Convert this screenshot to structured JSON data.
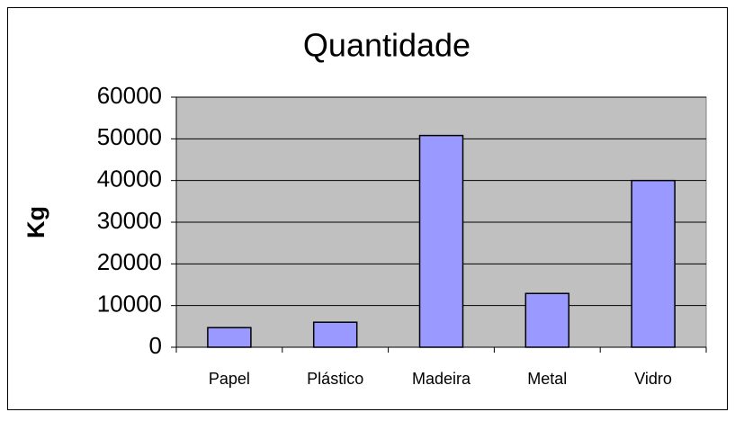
{
  "chart_data": {
    "type": "bar",
    "title": "Quantidade",
    "y_label": "Kg",
    "categories": [
      "Papel",
      "Plástico",
      "Madeira",
      "Metal",
      "Vidro"
    ],
    "values": [
      4700,
      6000,
      50800,
      12900,
      40000
    ],
    "color": "#9999ff",
    "ylim": [
      0,
      60000
    ],
    "yticks": [
      0,
      10000,
      20000,
      30000,
      40000,
      50000,
      60000
    ],
    "grid": true
  }
}
